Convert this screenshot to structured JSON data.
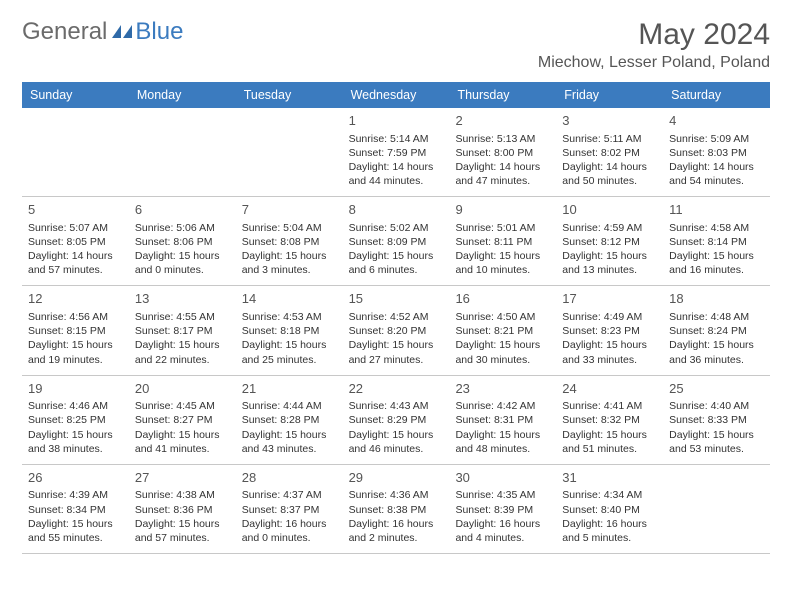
{
  "logo": {
    "general": "General",
    "blue": "Blue"
  },
  "title": "May 2024",
  "location": "Miechow, Lesser Poland, Poland",
  "colors": {
    "header_bg": "#3b7bbf",
    "header_text": "#ffffff",
    "body_text": "#333333",
    "title_text": "#555555",
    "rule": "#c8c8c8"
  },
  "day_names": [
    "Sunday",
    "Monday",
    "Tuesday",
    "Wednesday",
    "Thursday",
    "Friday",
    "Saturday"
  ],
  "weeks": [
    [
      null,
      null,
      null,
      {
        "d": "1",
        "sr": "5:14 AM",
        "ss": "7:59 PM",
        "dh": 14,
        "dm": 44
      },
      {
        "d": "2",
        "sr": "5:13 AM",
        "ss": "8:00 PM",
        "dh": 14,
        "dm": 47
      },
      {
        "d": "3",
        "sr": "5:11 AM",
        "ss": "8:02 PM",
        "dh": 14,
        "dm": 50
      },
      {
        "d": "4",
        "sr": "5:09 AM",
        "ss": "8:03 PM",
        "dh": 14,
        "dm": 54
      }
    ],
    [
      {
        "d": "5",
        "sr": "5:07 AM",
        "ss": "8:05 PM",
        "dh": 14,
        "dm": 57
      },
      {
        "d": "6",
        "sr": "5:06 AM",
        "ss": "8:06 PM",
        "dh": 15,
        "dm": 0
      },
      {
        "d": "7",
        "sr": "5:04 AM",
        "ss": "8:08 PM",
        "dh": 15,
        "dm": 3
      },
      {
        "d": "8",
        "sr": "5:02 AM",
        "ss": "8:09 PM",
        "dh": 15,
        "dm": 6
      },
      {
        "d": "9",
        "sr": "5:01 AM",
        "ss": "8:11 PM",
        "dh": 15,
        "dm": 10
      },
      {
        "d": "10",
        "sr": "4:59 AM",
        "ss": "8:12 PM",
        "dh": 15,
        "dm": 13
      },
      {
        "d": "11",
        "sr": "4:58 AM",
        "ss": "8:14 PM",
        "dh": 15,
        "dm": 16
      }
    ],
    [
      {
        "d": "12",
        "sr": "4:56 AM",
        "ss": "8:15 PM",
        "dh": 15,
        "dm": 19
      },
      {
        "d": "13",
        "sr": "4:55 AM",
        "ss": "8:17 PM",
        "dh": 15,
        "dm": 22
      },
      {
        "d": "14",
        "sr": "4:53 AM",
        "ss": "8:18 PM",
        "dh": 15,
        "dm": 25
      },
      {
        "d": "15",
        "sr": "4:52 AM",
        "ss": "8:20 PM",
        "dh": 15,
        "dm": 27
      },
      {
        "d": "16",
        "sr": "4:50 AM",
        "ss": "8:21 PM",
        "dh": 15,
        "dm": 30
      },
      {
        "d": "17",
        "sr": "4:49 AM",
        "ss": "8:23 PM",
        "dh": 15,
        "dm": 33
      },
      {
        "d": "18",
        "sr": "4:48 AM",
        "ss": "8:24 PM",
        "dh": 15,
        "dm": 36
      }
    ],
    [
      {
        "d": "19",
        "sr": "4:46 AM",
        "ss": "8:25 PM",
        "dh": 15,
        "dm": 38
      },
      {
        "d": "20",
        "sr": "4:45 AM",
        "ss": "8:27 PM",
        "dh": 15,
        "dm": 41
      },
      {
        "d": "21",
        "sr": "4:44 AM",
        "ss": "8:28 PM",
        "dh": 15,
        "dm": 43
      },
      {
        "d": "22",
        "sr": "4:43 AM",
        "ss": "8:29 PM",
        "dh": 15,
        "dm": 46
      },
      {
        "d": "23",
        "sr": "4:42 AM",
        "ss": "8:31 PM",
        "dh": 15,
        "dm": 48
      },
      {
        "d": "24",
        "sr": "4:41 AM",
        "ss": "8:32 PM",
        "dh": 15,
        "dm": 51
      },
      {
        "d": "25",
        "sr": "4:40 AM",
        "ss": "8:33 PM",
        "dh": 15,
        "dm": 53
      }
    ],
    [
      {
        "d": "26",
        "sr": "4:39 AM",
        "ss": "8:34 PM",
        "dh": 15,
        "dm": 55
      },
      {
        "d": "27",
        "sr": "4:38 AM",
        "ss": "8:36 PM",
        "dh": 15,
        "dm": 57
      },
      {
        "d": "28",
        "sr": "4:37 AM",
        "ss": "8:37 PM",
        "dh": 16,
        "dm": 0
      },
      {
        "d": "29",
        "sr": "4:36 AM",
        "ss": "8:38 PM",
        "dh": 16,
        "dm": 2
      },
      {
        "d": "30",
        "sr": "4:35 AM",
        "ss": "8:39 PM",
        "dh": 16,
        "dm": 4
      },
      {
        "d": "31",
        "sr": "4:34 AM",
        "ss": "8:40 PM",
        "dh": 16,
        "dm": 5
      },
      null
    ]
  ]
}
